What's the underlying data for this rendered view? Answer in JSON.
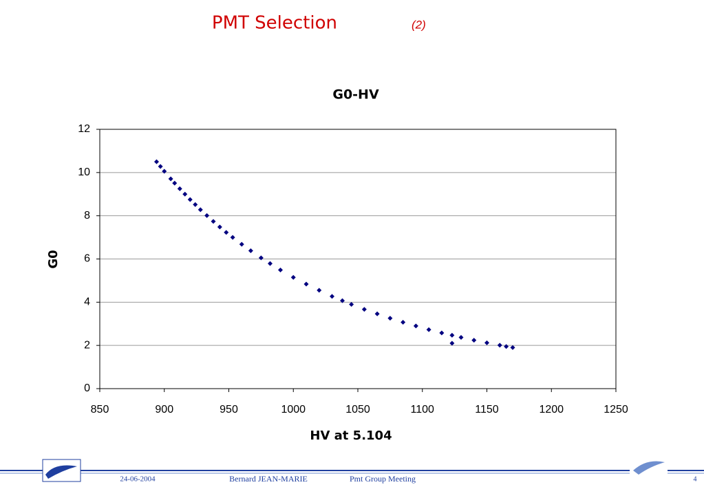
{
  "slide": {
    "title": "PMT Selection",
    "title_suffix": "(2)",
    "date": "24-06-2004",
    "author": "Bernard JEAN-MARIE",
    "meeting": "Pmt Group Meeting",
    "page": "4"
  },
  "chart_data": {
    "type": "scatter",
    "title": "G0-HV",
    "x_label": "HV at 5.104",
    "y_label": "G0",
    "series": [
      {
        "name": "G0",
        "color": "#000080",
        "x": [
          894,
          897,
          900,
          905,
          908,
          912,
          916,
          920,
          924,
          928,
          933,
          938,
          943,
          948,
          953,
          960,
          967,
          975,
          982,
          990,
          1000,
          1010,
          1020,
          1030,
          1038,
          1045,
          1055,
          1065,
          1075,
          1085,
          1095,
          1105,
          1115,
          1123,
          1123,
          1130,
          1140,
          1150,
          1160,
          1165,
          1170
        ],
        "values": [
          10.5,
          10.28,
          10.06,
          9.71,
          9.51,
          9.25,
          9.0,
          8.75,
          8.52,
          8.28,
          8.01,
          7.74,
          7.48,
          7.23,
          7.0,
          6.68,
          6.38,
          6.05,
          5.79,
          5.49,
          5.15,
          4.84,
          4.55,
          4.27,
          4.07,
          3.9,
          3.67,
          3.46,
          3.26,
          3.07,
          2.9,
          2.73,
          2.58,
          2.47,
          2.1,
          2.37,
          2.24,
          2.12,
          2.01,
          1.95,
          1.9
        ]
      }
    ],
    "xlim": [
      850,
      1250
    ],
    "xticks": [
      850,
      900,
      950,
      1000,
      1050,
      1100,
      1150,
      1200,
      1250
    ],
    "ylim": [
      0,
      12
    ],
    "yticks": [
      0,
      2,
      4,
      6,
      8,
      10,
      12
    ],
    "grid": true
  }
}
